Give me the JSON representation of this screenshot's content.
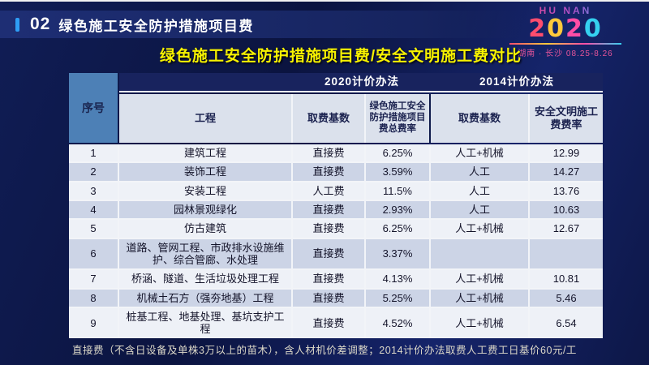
{
  "header": {
    "number": "02",
    "title": "绿色施工安全防护措施项目费"
  },
  "logo": {
    "line1": "HU NAN",
    "year_digits": [
      "2",
      "0",
      "2",
      "0"
    ],
    "venue_dates": "湖南 · 长沙  08.25-8.26"
  },
  "subtitle": "绿色施工安全防护措施项目费/安全文明施工费对比",
  "table": {
    "col_groups": [
      "2020计价办法",
      "2014计价办法"
    ],
    "columns": [
      "序号",
      "工程",
      "取费基数",
      "绿色施工安全防护措施项目费总费率",
      "取费基数",
      "安全文明施工费费率"
    ],
    "rows": [
      {
        "no": "1",
        "project": "建筑工程",
        "base2020": "直接费",
        "rate2020": "6.25%",
        "base2014": "人工+机械",
        "rate2014": "12.99"
      },
      {
        "no": "2",
        "project": "装饰工程",
        "base2020": "直接费",
        "rate2020": "3.59%",
        "base2014": "人工",
        "rate2014": "14.27"
      },
      {
        "no": "3",
        "project": "安装工程",
        "base2020": "人工费",
        "rate2020": "11.5%",
        "base2014": "人工",
        "rate2014": "13.76"
      },
      {
        "no": "4",
        "project": "园林景观绿化",
        "base2020": "直接费",
        "rate2020": "2.93%",
        "base2014": "人工",
        "rate2014": "10.63"
      },
      {
        "no": "5",
        "project": "仿古建筑",
        "base2020": "直接费",
        "rate2020": "6.25%",
        "base2014": "人工+机械",
        "rate2014": "12.67"
      },
      {
        "no": "6",
        "project": "道路、管网工程、市政排水设施维护、综合管廊、水处理",
        "base2020": "直接费",
        "rate2020": "3.37%",
        "base2014": "",
        "rate2014": ""
      },
      {
        "no": "7",
        "project": "桥涵、隧道、生活垃圾处理工程",
        "base2020": "直接费",
        "rate2020": "4.13%",
        "base2014": "人工+机械",
        "rate2014": "10.81"
      },
      {
        "no": "8",
        "project": "机械土石方（强夯地基）工程",
        "base2020": "直接费",
        "rate2020": "5.25%",
        "base2014": "人工+机械",
        "rate2014": "5.46"
      },
      {
        "no": "9",
        "project": "桩基工程、地基处理、基坑支护工程",
        "base2020": "直接费",
        "rate2020": "4.52%",
        "base2014": "人工+机械",
        "rate2014": "6.54"
      }
    ]
  },
  "footer_note": "直接费（不含日设备及单株3万以上的苗木），含人材机价差调整；2014计价办法取费人工费工日基价60元/工"
}
